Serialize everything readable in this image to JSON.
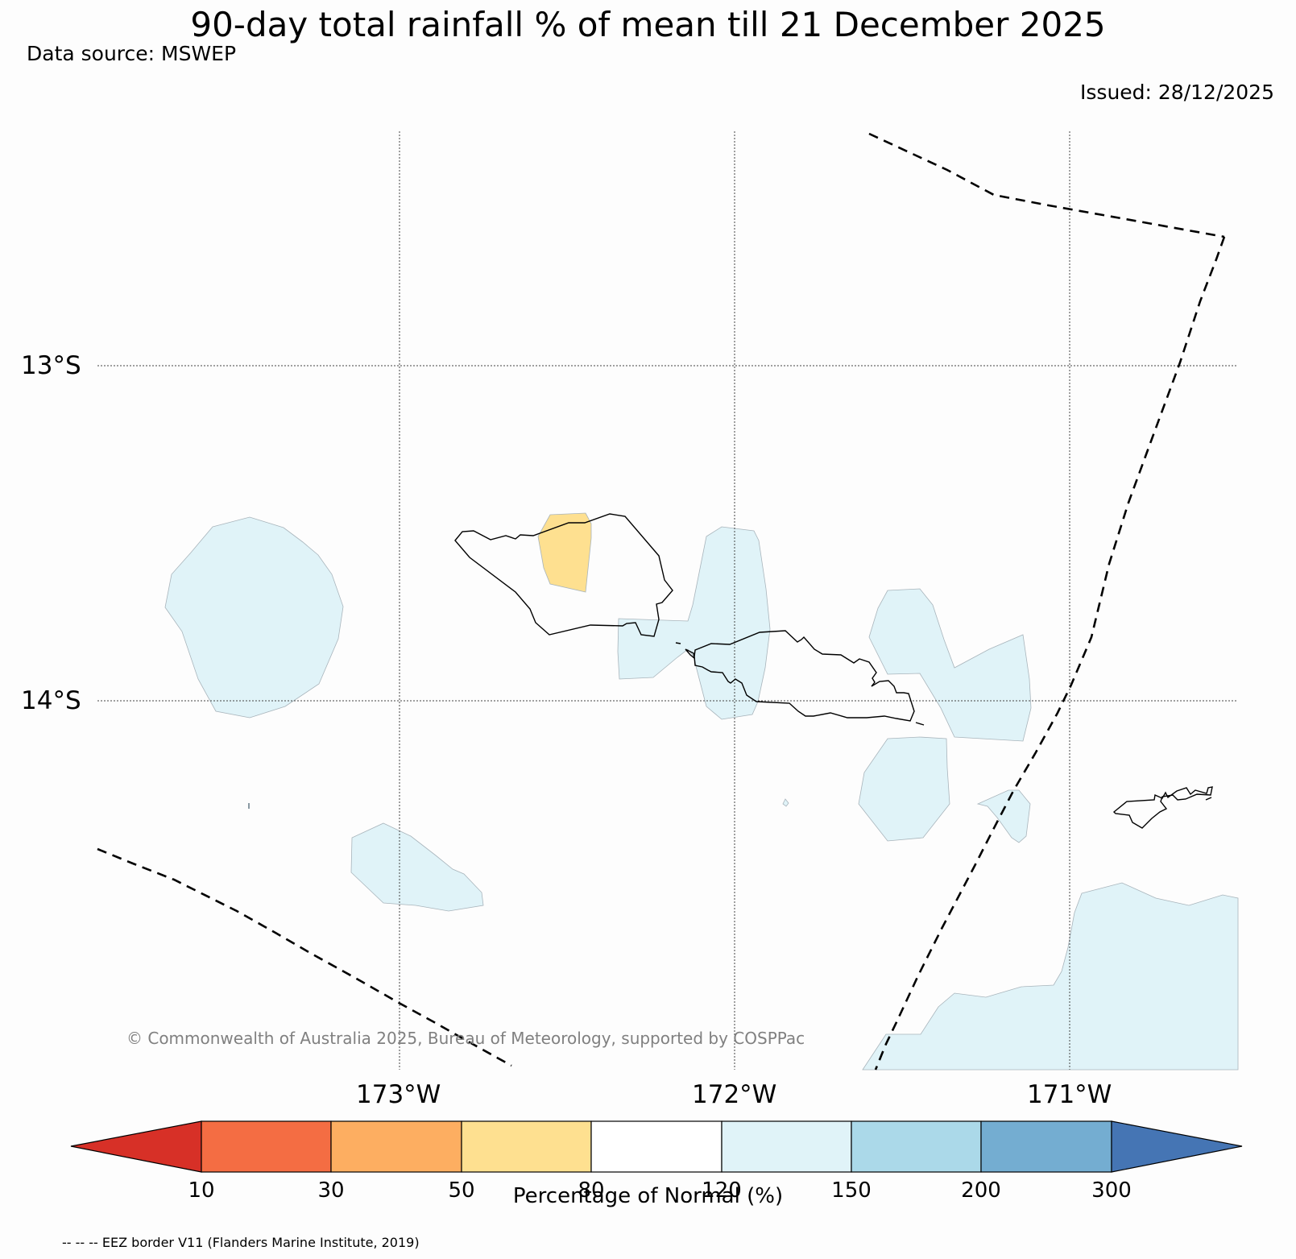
{
  "header": {
    "title": "90-day total rainfall % of mean till 21 December 2025",
    "data_source": "Data source: MSWEP",
    "issued": "Issued: 28/12/2025"
  },
  "map": {
    "lat_labels": [
      "13°S",
      "14°S"
    ],
    "lon_labels": [
      "173°W",
      "172°W",
      "171°W"
    ],
    "copyright": "© Commonwealth of Australia 2025, Bureau of Meteorology, supported by COSPPac",
    "colors": {
      "above_120_150": "#e0f3f8",
      "between_50_80": "#fee090",
      "coastline": "#000000",
      "eez": "#000000"
    }
  },
  "colorbar": {
    "label": "Percentage of Normal (%)",
    "ticks": [
      "10",
      "30",
      "50",
      "80",
      "120",
      "150",
      "200",
      "300"
    ],
    "colors": [
      "#d73027",
      "#f46d43",
      "#fdae61",
      "#fee090",
      "#ffffff",
      "#e0f3f8",
      "#abd9e9",
      "#74add1",
      "#4575b4"
    ]
  },
  "footer": {
    "eez_note": "-- -- -- EEZ border V11 (Flanders Marine Institute, 2019)"
  }
}
